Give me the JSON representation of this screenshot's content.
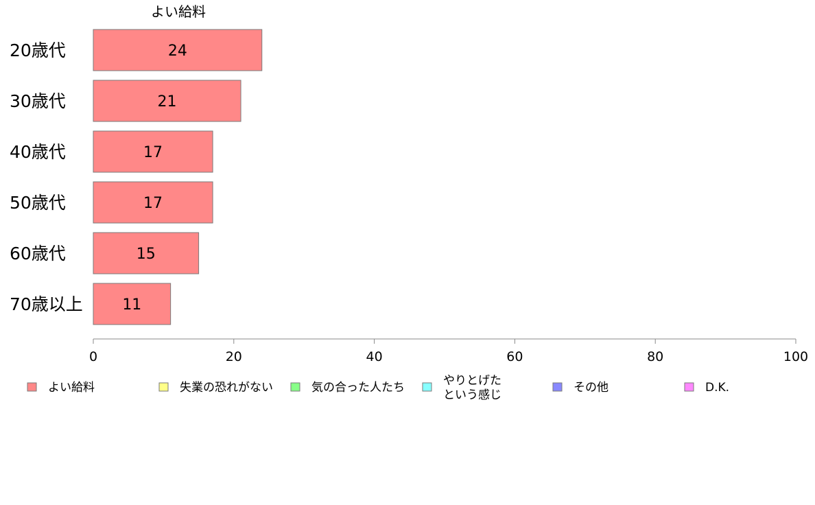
{
  "chart_data": {
    "type": "bar",
    "orientation": "horizontal",
    "title": "よい給料",
    "categories": [
      "20歳代",
      "30歳代",
      "40歳代",
      "50歳代",
      "60歳代",
      "70歳以上"
    ],
    "series": [
      {
        "name": "よい給料",
        "values": [
          24,
          21,
          17,
          17,
          15,
          11
        ],
        "color": "#ff8888"
      }
    ],
    "data_labels": [
      "24",
      "21",
      "17",
      "17",
      "15",
      "11"
    ],
    "xlim": [
      0,
      100
    ],
    "xticks": [
      0,
      20,
      40,
      60,
      80,
      100
    ],
    "xtick_labels": [
      "0",
      "20",
      "40",
      "60",
      "80",
      "100"
    ],
    "grid": false,
    "legend_position": "bottom",
    "legend": [
      {
        "label": "よい給料",
        "color": "#ff8888"
      },
      {
        "label": "失業の恐れがない",
        "color": "#ffff88"
      },
      {
        "label": "気の合った人たち",
        "color": "#88ff88"
      },
      {
        "label": "やりとげた\nという感じ",
        "color": "#88ffff"
      },
      {
        "label": "その他",
        "color": "#8888ff"
      },
      {
        "label": "D.K.",
        "color": "#ff88ff"
      }
    ]
  }
}
